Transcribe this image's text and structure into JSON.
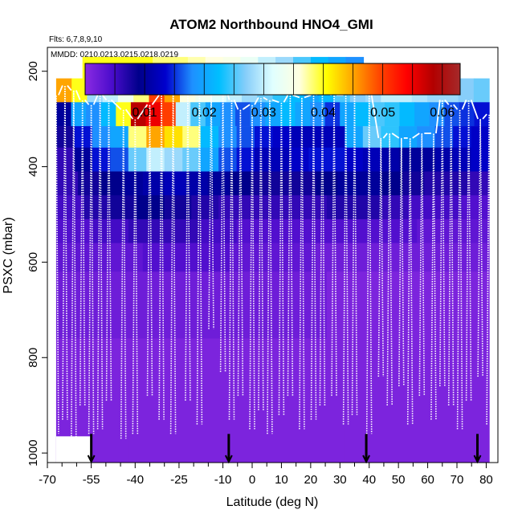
{
  "chart_data": {
    "type": "heatmap",
    "title": "ATOM2 Northbound HNO4_GMI",
    "flights_note": "Flts: 6,7,8,9,10",
    "dates_note": "MMDD: 0210,0213,0215,0218,0219",
    "xlabel": "Latitude (deg N)",
    "ylabel": "PSXC (mbar)",
    "xlim": [
      -70,
      84
    ],
    "ylim_mbar": [
      1020,
      150
    ],
    "x_ticks": [
      "-70",
      "-55",
      "-40",
      "-25",
      "-10",
      "0",
      "10",
      "20",
      "30",
      "40",
      "50",
      "60",
      "70",
      "80"
    ],
    "x_tick_values": [
      -70,
      -55,
      -40,
      -25,
      -10,
      0,
      10,
      20,
      30,
      40,
      50,
      60,
      70,
      80
    ],
    "x_minor_tick_values": [
      -65,
      -60,
      -50,
      -45,
      -35,
      -30,
      -20,
      -15,
      -5,
      5,
      15,
      25,
      35,
      45,
      55,
      65,
      75
    ],
    "y_ticks": [
      "200",
      "400",
      "600",
      "800",
      "1000"
    ],
    "y_tick_values": [
      200,
      400,
      600,
      800,
      1000
    ],
    "colorbar": {
      "range": [
        0.0,
        0.063
      ],
      "ticks": [
        "0.01",
        "0.02",
        "0.03",
        "0.04",
        "0.05",
        "0.06"
      ],
      "tick_values": [
        0.01,
        0.02,
        0.03,
        0.04,
        0.05,
        0.06
      ],
      "colors": [
        "#8a2be2",
        "#4b0ccc",
        "#00008b",
        "#0000cd",
        "#1e90ff",
        "#00bfff",
        "#87cefa",
        "#e0ffff",
        "#ffffe0",
        "#ffff00",
        "#ffa500",
        "#ff4500",
        "#ff0000",
        "#b20000",
        "#a52a2a"
      ]
    },
    "level_bands": [
      {
        "p_top": 170,
        "p_bot": 215,
        "values": [
          0.04,
          0.04,
          0.04,
          0.04,
          0.038,
          0.038,
          0.037,
          0.036,
          0.035,
          0.033,
          0.03,
          0.028,
          0.025,
          0.022,
          0.02,
          0.018
        ]
      },
      {
        "p_top": 215,
        "p_bot": 265,
        "values": [
          0.045,
          0.04,
          0.028,
          0.03,
          0.034,
          0.038,
          0.05,
          0.045,
          0.036,
          0.034,
          0.032,
          0.03,
          0.028,
          0.026,
          0.024,
          0.022,
          0.02,
          0.022,
          0.025,
          0.027,
          0.028,
          0.03,
          0.03,
          0.029,
          0.028,
          0.028,
          0.027,
          0.026
        ]
      },
      {
        "p_top": 265,
        "p_bot": 315,
        "values": [
          0.01,
          0.02,
          0.018,
          0.022,
          0.04,
          0.058,
          0.055,
          0.05,
          0.03,
          0.025,
          0.02,
          0.018,
          0.016,
          0.018,
          0.02,
          0.022,
          0.02,
          0.018,
          0.015,
          0.02,
          0.022,
          0.025,
          0.024,
          0.022,
          0.02,
          0.018,
          0.016,
          0.015,
          0.014
        ]
      },
      {
        "p_top": 315,
        "p_bot": 360,
        "values": [
          0.008,
          0.014,
          0.018,
          0.02,
          0.038,
          0.045,
          0.042,
          0.038,
          0.022,
          0.018,
          0.016,
          0.014,
          0.013,
          0.012,
          0.012,
          0.012,
          0.02,
          0.026,
          0.024,
          0.02,
          0.018,
          0.016,
          0.014,
          0.013
        ]
      },
      {
        "p_top": 360,
        "p_bot": 410,
        "values": [
          0.006,
          0.01,
          0.014,
          0.016,
          0.026,
          0.03,
          0.028,
          0.026,
          0.02,
          0.016,
          0.014,
          0.012,
          0.012,
          0.013,
          0.014,
          0.014,
          0.013,
          0.012,
          0.011,
          0.01,
          0.01,
          0.011,
          0.012,
          0.013
        ]
      },
      {
        "p_top": 410,
        "p_bot": 460,
        "values": [
          0.006,
          0.008,
          0.009,
          0.01,
          0.011,
          0.012,
          0.011,
          0.01,
          0.009,
          0.008,
          0.008,
          0.008,
          0.009,
          0.01,
          0.01,
          0.009,
          0.008,
          0.007,
          0.007,
          0.006
        ]
      },
      {
        "p_top": 460,
        "p_bot": 510,
        "values": [
          0.005,
          0.007,
          0.008,
          0.009,
          0.008,
          0.007,
          0.006,
          0.006,
          0.006,
          0.006,
          0.007,
          0.007,
          0.006,
          0.005,
          0.005,
          0.004
        ]
      },
      {
        "p_top": 510,
        "p_bot": 560,
        "values": [
          0.004,
          0.005,
          0.006,
          0.006,
          0.005,
          0.004,
          0.004,
          0.004,
          0.004,
          0.004,
          0.003,
          0.003
        ]
      },
      {
        "p_top": 560,
        "p_bot": 620,
        "values": [
          0.003,
          0.003,
          0.004,
          0.004,
          0.003,
          0.003,
          0.002,
          0.002,
          0.002,
          0.002
        ]
      },
      {
        "p_top": 620,
        "p_bot": 760,
        "values": [
          0.002,
          0.002,
          0.002,
          0.002,
          0.002,
          0.001,
          0.001,
          0.001
        ]
      },
      {
        "p_top": 760,
        "p_bot": 1020,
        "values": [
          0.001,
          0.001,
          0.001,
          0.001,
          0.001,
          0.001
        ]
      }
    ],
    "flight_track_lats": [
      -67,
      -64,
      -61,
      -58,
      -55,
      -52,
      -49,
      -44,
      -40,
      -35,
      -31,
      -27,
      -22,
      -18,
      -14,
      -10,
      -7,
      -4,
      0,
      3,
      6,
      10,
      13,
      17,
      21,
      24,
      28,
      32,
      35,
      40,
      44,
      47,
      51,
      54,
      58,
      62,
      65,
      68,
      71,
      74,
      78,
      81
    ],
    "flight_track_min_p": [
      250,
      230,
      240,
      260,
      270,
      250,
      260,
      280,
      300,
      270,
      250,
      240,
      250,
      235,
      240,
      230,
      260,
      280,
      270,
      255,
      260,
      265,
      250,
      255,
      250,
      245,
      250,
      250,
      240,
      250,
      340,
      330,
      340,
      340,
      330,
      330,
      260,
      270,
      280,
      260,
      300,
      290
    ],
    "flight_track_max_p": [
      960,
      930,
      980,
      900,
      960,
      950,
      890,
      970,
      960,
      880,
      930,
      960,
      890,
      940,
      740,
      830,
      930,
      880,
      950,
      910,
      960,
      920,
      880,
      950,
      930,
      900,
      880,
      940,
      920,
      960,
      840,
      900,
      860,
      940,
      880,
      930,
      860,
      900,
      950,
      890,
      840,
      940
    ],
    "flight_markers_lat": [
      -55,
      -8,
      39,
      77
    ]
  }
}
